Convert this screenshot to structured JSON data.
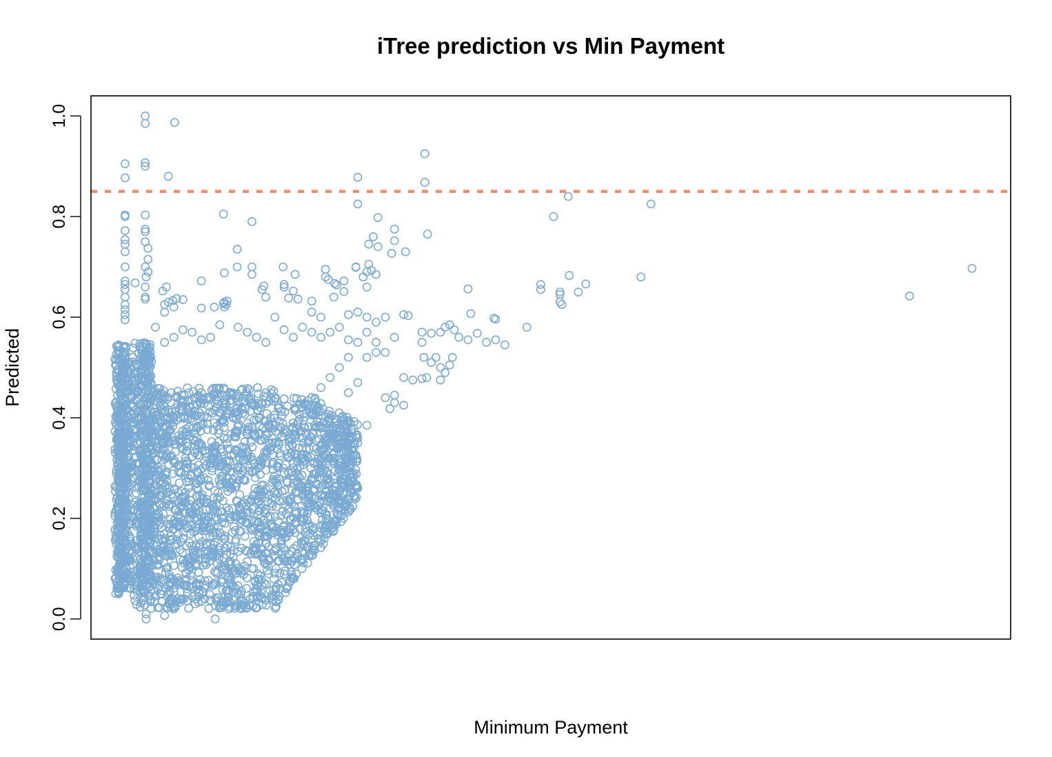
{
  "chart_data": {
    "type": "scatter",
    "title": "iTree prediction vs Min Payment",
    "xlabel": "Minimum Payment",
    "ylabel": "Predicted",
    "xlim": [
      0,
      1
    ],
    "ylim": [
      -0.04,
      1.04
    ],
    "x_ticks_shown": false,
    "y_ticks": [
      {
        "value": 0.0,
        "label": "0.0"
      },
      {
        "value": 0.2,
        "label": "0.2"
      },
      {
        "value": 0.4,
        "label": "0.4"
      },
      {
        "value": 0.6,
        "label": "0.6"
      },
      {
        "value": 0.8,
        "label": "0.8"
      },
      {
        "value": 1.0,
        "label": "1.0"
      }
    ],
    "grid": false,
    "colors": {
      "points": "#7aaad2",
      "threshold_line": "#ef8e6e",
      "frame": "#000000"
    },
    "threshold_line": {
      "orientation": "horizontal",
      "y": 0.85,
      "style": "dashed"
    },
    "dense_point_cloud_note_free": true,
    "series": [
      {
        "marker": "open-circle",
        "points": [
          [
            0.059,
            1.0
          ],
          [
            0.059,
            0.985
          ],
          [
            0.091,
            0.987
          ],
          [
            0.037,
            0.905
          ],
          [
            0.059,
            0.907
          ],
          [
            0.059,
            0.9
          ],
          [
            0.037,
            0.877
          ],
          [
            0.084,
            0.88
          ],
          [
            0.037,
            0.803
          ],
          [
            0.037,
            0.8
          ],
          [
            0.059,
            0.803
          ],
          [
            0.037,
            0.772
          ],
          [
            0.059,
            0.775
          ],
          [
            0.059,
            0.77
          ],
          [
            0.037,
            0.754
          ],
          [
            0.037,
            0.745
          ],
          [
            0.059,
            0.75
          ],
          [
            0.062,
            0.737
          ],
          [
            0.037,
            0.73
          ],
          [
            0.037,
            0.7
          ],
          [
            0.062,
            0.715
          ],
          [
            0.059,
            0.7
          ],
          [
            0.062,
            0.69
          ],
          [
            0.06,
            0.68
          ],
          [
            0.037,
            0.672
          ],
          [
            0.037,
            0.665
          ],
          [
            0.037,
            0.655
          ],
          [
            0.048,
            0.668
          ],
          [
            0.059,
            0.66
          ],
          [
            0.037,
            0.64
          ],
          [
            0.059,
            0.64
          ],
          [
            0.059,
            0.636
          ],
          [
            0.037,
            0.625
          ],
          [
            0.037,
            0.615
          ],
          [
            0.037,
            0.605
          ],
          [
            0.037,
            0.595
          ],
          [
            0.082,
            0.66
          ],
          [
            0.078,
            0.652
          ],
          [
            0.08,
            0.625
          ],
          [
            0.084,
            0.63
          ],
          [
            0.089,
            0.633
          ],
          [
            0.093,
            0.637
          ],
          [
            0.1,
            0.635
          ],
          [
            0.08,
            0.61
          ],
          [
            0.09,
            0.62
          ],
          [
            0.12,
            0.672
          ],
          [
            0.134,
            0.62
          ],
          [
            0.12,
            0.618
          ],
          [
            0.145,
            0.688
          ],
          [
            0.145,
            0.63
          ],
          [
            0.145,
            0.62
          ],
          [
            0.147,
            0.625
          ],
          [
            0.148,
            0.632
          ],
          [
            0.144,
            0.627
          ],
          [
            0.144,
            0.805
          ],
          [
            0.175,
            0.79
          ],
          [
            0.159,
            0.735
          ],
          [
            0.159,
            0.7
          ],
          [
            0.175,
            0.7
          ],
          [
            0.175,
            0.685
          ],
          [
            0.186,
            0.655
          ],
          [
            0.188,
            0.662
          ],
          [
            0.19,
            0.64
          ],
          [
            0.209,
            0.7
          ],
          [
            0.21,
            0.66
          ],
          [
            0.21,
            0.665
          ],
          [
            0.22,
            0.652
          ],
          [
            0.222,
            0.685
          ],
          [
            0.215,
            0.638
          ],
          [
            0.225,
            0.636
          ],
          [
            0.24,
            0.632
          ],
          [
            0.24,
            0.61
          ],
          [
            0.255,
            0.695
          ],
          [
            0.255,
            0.68
          ],
          [
            0.258,
            0.675
          ],
          [
            0.265,
            0.667
          ],
          [
            0.267,
            0.664
          ],
          [
            0.275,
            0.672
          ],
          [
            0.264,
            0.64
          ],
          [
            0.275,
            0.651
          ],
          [
            0.288,
            0.7
          ],
          [
            0.288,
            0.699
          ],
          [
            0.29,
            0.825
          ],
          [
            0.29,
            0.878
          ],
          [
            0.296,
            0.68
          ],
          [
            0.3,
            0.66
          ],
          [
            0.3,
            0.69
          ],
          [
            0.302,
            0.705
          ],
          [
            0.305,
            0.693
          ],
          [
            0.31,
            0.685
          ],
          [
            0.312,
            0.798
          ],
          [
            0.302,
            0.745
          ],
          [
            0.307,
            0.76
          ],
          [
            0.312,
            0.74
          ],
          [
            0.327,
            0.727
          ],
          [
            0.33,
            0.775
          ],
          [
            0.33,
            0.752
          ],
          [
            0.342,
            0.73
          ],
          [
            0.363,
            0.925
          ],
          [
            0.363,
            0.868
          ],
          [
            0.366,
            0.765
          ],
          [
            0.41,
            0.656
          ],
          [
            0.413,
            0.607
          ],
          [
            0.438,
            0.598
          ],
          [
            0.44,
            0.596
          ],
          [
            0.474,
            0.58
          ],
          [
            0.489,
            0.665
          ],
          [
            0.489,
            0.655
          ],
          [
            0.503,
            0.8
          ],
          [
            0.51,
            0.65
          ],
          [
            0.51,
            0.645
          ],
          [
            0.51,
            0.63
          ],
          [
            0.512,
            0.625
          ],
          [
            0.519,
            0.84
          ],
          [
            0.52,
            0.683
          ],
          [
            0.53,
            0.65
          ],
          [
            0.538,
            0.666
          ],
          [
            0.598,
            0.68
          ],
          [
            0.609,
            0.825
          ],
          [
            0.89,
            0.642
          ],
          [
            0.958,
            0.697
          ],
          [
            0.25,
            0.6
          ],
          [
            0.28,
            0.605
          ],
          [
            0.29,
            0.61
          ],
          [
            0.3,
            0.6
          ],
          [
            0.31,
            0.59
          ],
          [
            0.32,
            0.6
          ],
          [
            0.34,
            0.605
          ],
          [
            0.345,
            0.603
          ],
          [
            0.36,
            0.57
          ],
          [
            0.37,
            0.568
          ],
          [
            0.38,
            0.57
          ],
          [
            0.385,
            0.58
          ],
          [
            0.39,
            0.585
          ],
          [
            0.395,
            0.575
          ],
          [
            0.4,
            0.56
          ],
          [
            0.41,
            0.555
          ],
          [
            0.42,
            0.568
          ],
          [
            0.43,
            0.55
          ],
          [
            0.44,
            0.555
          ],
          [
            0.45,
            0.545
          ],
          [
            0.36,
            0.55
          ],
          [
            0.362,
            0.52
          ],
          [
            0.37,
            0.51
          ],
          [
            0.375,
            0.52
          ],
          [
            0.38,
            0.5
          ],
          [
            0.385,
            0.49
          ],
          [
            0.39,
            0.505
          ],
          [
            0.393,
            0.52
          ],
          [
            0.36,
            0.478
          ],
          [
            0.365,
            0.48
          ],
          [
            0.38,
            0.475
          ],
          [
            0.35,
            0.475
          ],
          [
            0.34,
            0.48
          ],
          [
            0.33,
            0.43
          ],
          [
            0.32,
            0.44
          ],
          [
            0.33,
            0.445
          ],
          [
            0.325,
            0.418
          ],
          [
            0.34,
            0.425
          ],
          [
            0.3,
            0.385
          ],
          [
            0.28,
            0.36
          ],
          [
            0.285,
            0.35
          ],
          [
            0.29,
            0.36
          ],
          [
            0.29,
            0.35
          ],
          [
            0.27,
            0.33
          ],
          [
            0.26,
            0.32
          ],
          [
            0.25,
            0.3
          ],
          [
            0.24,
            0.28
          ],
          [
            0.23,
            0.265
          ],
          [
            0.22,
            0.27
          ],
          [
            0.225,
            0.285
          ],
          [
            0.2,
            0.24
          ],
          [
            0.19,
            0.21
          ],
          [
            0.185,
            0.22
          ],
          [
            0.17,
            0.19
          ],
          [
            0.3,
            0.52
          ],
          [
            0.31,
            0.55
          ],
          [
            0.32,
            0.53
          ],
          [
            0.33,
            0.56
          ],
          [
            0.3,
            0.57
          ],
          [
            0.31,
            0.53
          ],
          [
            0.27,
            0.5
          ],
          [
            0.28,
            0.52
          ],
          [
            0.26,
            0.48
          ],
          [
            0.25,
            0.46
          ],
          [
            0.24,
            0.44
          ],
          [
            0.23,
            0.42
          ],
          [
            0.22,
            0.39
          ],
          [
            0.21,
            0.37
          ],
          [
            0.2,
            0.35
          ],
          [
            0.29,
            0.47
          ],
          [
            0.28,
            0.45
          ],
          [
            0.27,
            0.41
          ],
          [
            0.26,
            0.4
          ],
          [
            0.25,
            0.38
          ],
          [
            0.24,
            0.36
          ],
          [
            0.23,
            0.34
          ],
          [
            0.22,
            0.31
          ],
          [
            0.21,
            0.29
          ],
          [
            0.14,
            0.585
          ],
          [
            0.16,
            0.58
          ],
          [
            0.17,
            0.57
          ],
          [
            0.18,
            0.56
          ],
          [
            0.19,
            0.55
          ],
          [
            0.2,
            0.6
          ],
          [
            0.21,
            0.575
          ],
          [
            0.22,
            0.56
          ],
          [
            0.23,
            0.58
          ],
          [
            0.24,
            0.57
          ],
          [
            0.25,
            0.56
          ],
          [
            0.26,
            0.57
          ],
          [
            0.27,
            0.58
          ],
          [
            0.28,
            0.555
          ],
          [
            0.29,
            0.55
          ],
          [
            0.12,
            0.555
          ],
          [
            0.13,
            0.56
          ],
          [
            0.11,
            0.57
          ],
          [
            0.1,
            0.575
          ],
          [
            0.09,
            0.56
          ],
          [
            0.08,
            0.55
          ],
          [
            0.07,
            0.58
          ],
          [
            0.03,
            0.06
          ],
          [
            0.03,
            0.05
          ],
          [
            0.06,
            0.0
          ],
          [
            0.06,
            0.01
          ],
          [
            0.08,
            0.007
          ],
          [
            0.135,
            0.0
          ],
          [
            0.15,
            0.02
          ],
          [
            0.09,
            0.02
          ]
        ]
      }
    ]
  }
}
